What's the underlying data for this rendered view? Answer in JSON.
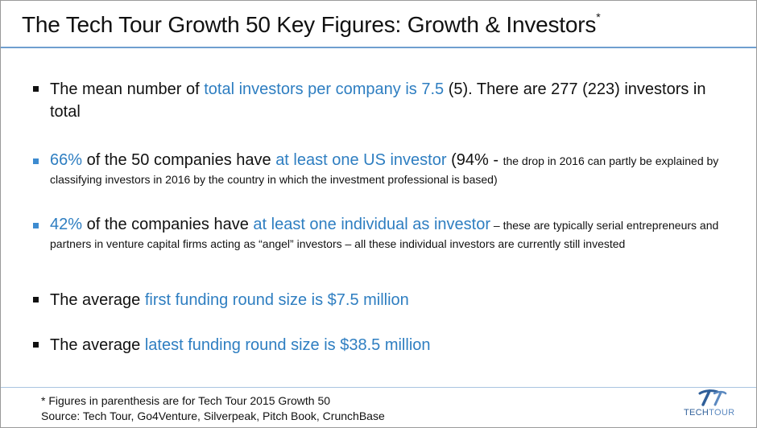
{
  "title": {
    "text": "The Tech Tour Growth 50 Key Figures: Growth & Investors",
    "mark": "*"
  },
  "bullets": [
    {
      "marker_color": "#111111",
      "parts": [
        {
          "text": "The mean number of ",
          "style": "normal"
        },
        {
          "text": "total investors per company is 7.5",
          "style": "highlight"
        },
        {
          "text": " (5). There are 277 (223) investors in total",
          "style": "normal"
        }
      ]
    },
    {
      "marker_color": "#3d8bd0",
      "parts": [
        {
          "text": "66%",
          "style": "highlight"
        },
        {
          "text": " of the 50 companies have ",
          "style": "normal"
        },
        {
          "text": "at least one US investor",
          "style": "highlight"
        },
        {
          "text": " (94% - ",
          "style": "normal"
        },
        {
          "text": "the drop in 2016 can partly be explained by classifying investors in 2016 by the country in which the investment professional is based)",
          "style": "small"
        }
      ]
    },
    {
      "marker_color": "#3d8bd0",
      "parts": [
        {
          "text": "42%",
          "style": "highlight"
        },
        {
          "text": " of the companies have ",
          "style": "normal"
        },
        {
          "text": "at least one individual as investor",
          "style": "highlight"
        },
        {
          "text": " – these are typically serial entrepreneurs and partners in venture capital firms acting as “angel” investors – all these individual investors are currently still invested",
          "style": "small"
        }
      ]
    },
    {
      "marker_color": "#111111",
      "parts": [
        {
          "text": "The average ",
          "style": "normal"
        },
        {
          "text": "first funding round size is $7.5 million",
          "style": "highlight"
        }
      ]
    },
    {
      "marker_color": "#111111",
      "parts": [
        {
          "text": "The average ",
          "style": "normal"
        },
        {
          "text": "latest funding round size is $38.5 million",
          "style": "highlight"
        }
      ]
    }
  ],
  "footer": {
    "note": "* Figures in parenthesis are for Tech Tour 2015 Growth 50",
    "source": "Source: Tech Tour, Go4Venture, Silverpeak, Pitch Book, CrunchBase"
  },
  "logo": {
    "word_part1": "TECH",
    "word_part2": "TOUR",
    "icon": "tech-tour-logo-icon",
    "color": "#2f5f99"
  }
}
